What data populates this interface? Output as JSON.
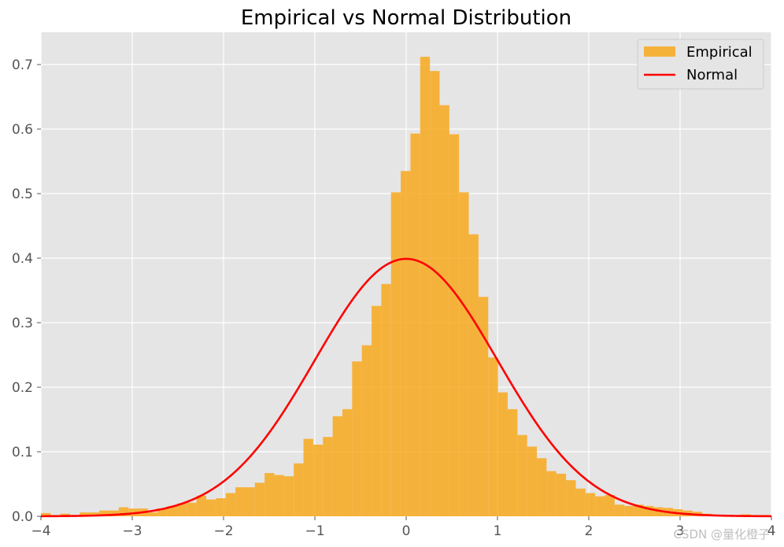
{
  "chart_data": {
    "type": "histogram",
    "title": "Empirical vs Normal Distribution",
    "xlabel": "",
    "ylabel": "",
    "xlim": [
      -4,
      4
    ],
    "ylim": [
      0,
      0.75
    ],
    "xticks": [
      -4,
      -3,
      -2,
      -1,
      0,
      1,
      2,
      3,
      4
    ],
    "xtick_labels": [
      "−4",
      "−3",
      "−2",
      "−1",
      "0",
      "1",
      "2",
      "3",
      "4"
    ],
    "yticks": [
      0.0,
      0.1,
      0.2,
      0.3,
      0.4,
      0.5,
      0.6,
      0.7
    ],
    "ytick_labels": [
      "0.0",
      "0.1",
      "0.2",
      "0.3",
      "0.4",
      "0.5",
      "0.6",
      "0.7"
    ],
    "grid": true,
    "legend_position": "top-right",
    "series": [
      {
        "name": "Empirical",
        "kind": "histogram",
        "color": "#f8a91d",
        "bin_start": -4.0,
        "bin_width": 0.1065,
        "values": [
          0.005,
          0.002,
          0.004,
          0.001,
          0.006,
          0.006,
          0.009,
          0.009,
          0.014,
          0.012,
          0.012,
          0.006,
          0.012,
          0.016,
          0.02,
          0.021,
          0.032,
          0.026,
          0.028,
          0.036,
          0.045,
          0.045,
          0.052,
          0.067,
          0.064,
          0.062,
          0.082,
          0.12,
          0.111,
          0.123,
          0.155,
          0.166,
          0.24,
          0.265,
          0.326,
          0.36,
          0.502,
          0.535,
          0.593,
          0.712,
          0.69,
          0.637,
          0.592,
          0.502,
          0.437,
          0.34,
          0.246,
          0.192,
          0.166,
          0.126,
          0.108,
          0.09,
          0.07,
          0.066,
          0.056,
          0.043,
          0.036,
          0.031,
          0.033,
          0.018,
          0.016,
          0.018,
          0.016,
          0.014,
          0.013,
          0.011,
          0.009,
          0.007,
          0.004,
          0.002,
          0.002,
          0.001,
          0.003,
          0.002,
          0.002,
          0.001
        ],
        "pad_values": [
          0.003,
          0.002
        ]
      },
      {
        "name": "Normal",
        "kind": "line",
        "color": "#ff0000",
        "mean": 0,
        "std": 1,
        "x_range": [
          -4,
          4
        ]
      }
    ]
  },
  "watermark": "CSDN @量化橙子"
}
